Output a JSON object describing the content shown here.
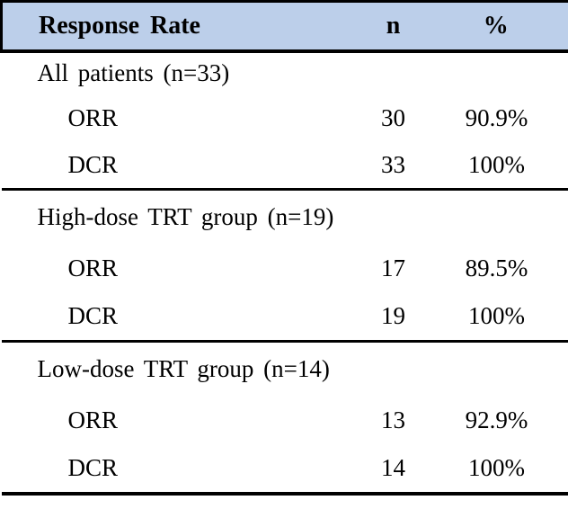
{
  "table": {
    "header": {
      "col_label": "Response Rate",
      "col_n": "n",
      "col_pct": "%"
    },
    "sections": [
      {
        "label": "All patients (n=33)",
        "rows": [
          {
            "name": "ORR",
            "n": "30",
            "pct": "90.9%"
          },
          {
            "name": "DCR",
            "n": "33",
            "pct": "100%"
          }
        ]
      },
      {
        "label": "High-dose TRT group (n=19)",
        "rows": [
          {
            "name": "ORR",
            "n": "17",
            "pct": "89.5%"
          },
          {
            "name": "DCR",
            "n": "19",
            "pct": "100%"
          }
        ]
      },
      {
        "label": "Low-dose TRT group (n=14)",
        "rows": [
          {
            "name": "ORR",
            "n": "13",
            "pct": "92.9%"
          },
          {
            "name": "DCR",
            "n": "14",
            "pct": "100%"
          }
        ]
      }
    ],
    "colors": {
      "header_bg": "#bccfea",
      "border": "#000000",
      "text": "#000000",
      "background": "#ffffff"
    }
  }
}
